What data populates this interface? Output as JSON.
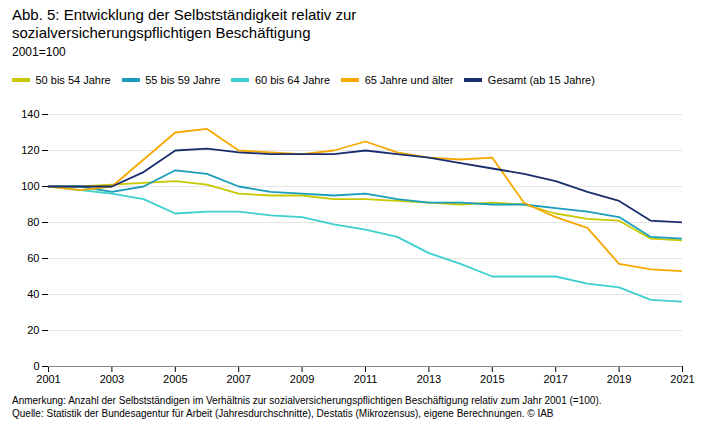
{
  "chart_data": {
    "type": "line",
    "title": "Abb. 5: Entwicklung der Selbstständigkeit relativ zur sozialversicherungspflichtigen Beschäftigung",
    "subtitle": "2001=100",
    "x": [
      2001,
      2002,
      2003,
      2004,
      2005,
      2006,
      2007,
      2008,
      2009,
      2010,
      2011,
      2012,
      2013,
      2014,
      2015,
      2016,
      2017,
      2018,
      2019,
      2020,
      2021
    ],
    "series": [
      {
        "name": "50 bis 54 Jahre",
        "color": "#c8c800",
        "values": [
          100,
          100,
          101,
          102,
          103,
          101,
          96,
          95,
          95,
          93,
          93,
          92,
          91,
          90,
          91,
          90,
          85,
          82,
          81,
          71,
          70
        ]
      },
      {
        "name": "55 bis 59 Jahre",
        "color": "#1a9dba",
        "values": [
          100,
          100,
          97,
          100,
          109,
          107,
          100,
          97,
          96,
          95,
          96,
          93,
          91,
          91,
          90,
          90,
          88,
          86,
          83,
          72,
          71
        ]
      },
      {
        "name": "60 bis 64 Jahre",
        "color": "#3dcfcf",
        "values": [
          100,
          98,
          96,
          93,
          85,
          86,
          86,
          84,
          83,
          79,
          76,
          72,
          63,
          57,
          50,
          50,
          50,
          46,
          44,
          37,
          36
        ]
      },
      {
        "name": "65 Jahre und älter",
        "color": "#f5a800",
        "values": [
          100,
          98,
          100,
          115,
          130,
          132,
          120,
          119,
          118,
          120,
          125,
          119,
          116,
          115,
          116,
          91,
          83,
          77,
          57,
          54,
          53
        ]
      },
      {
        "name": "Gesamt (ab 15 Jahre)",
        "color": "#1a2e6e",
        "values": [
          100,
          100,
          100,
          108,
          120,
          121,
          119,
          118,
          118,
          118,
          120,
          118,
          116,
          113,
          110,
          107,
          103,
          97,
          92,
          81,
          80
        ]
      }
    ],
    "xlim": [
      2001,
      2021
    ],
    "xticks": [
      2001,
      2003,
      2005,
      2007,
      2009,
      2011,
      2013,
      2015,
      2017,
      2019,
      2021
    ],
    "ylim": [
      0,
      140
    ],
    "yticks": [
      0,
      20,
      40,
      60,
      80,
      100,
      120,
      140
    ],
    "grid": true,
    "legend": "top",
    "footnotes": [
      "Anmerkung: Anzahl der Selbstständigen im Verhältnis zur sozialversicherungspflichtigen Beschäftigung relativ zum Jahr 2001 (=100).",
      "Quelle: Statistik der Bundesagentur für Arbeit (Jahresdurchschnitte), Destatis (Mikrozensus), eigene Berechnungen. © IAB"
    ]
  }
}
